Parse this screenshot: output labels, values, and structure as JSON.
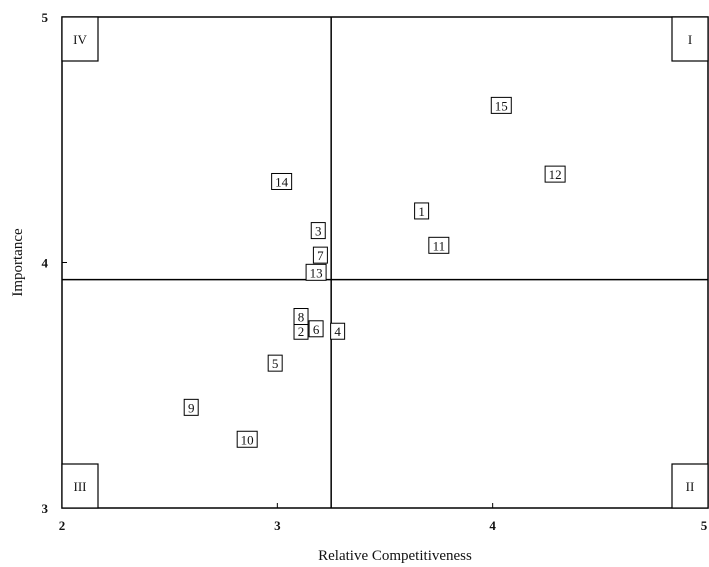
{
  "chart_data": {
    "type": "scatter",
    "title": "",
    "xlabel": "Relative Competitiveness",
    "ylabel": "Importance",
    "xlim": [
      2,
      5
    ],
    "ylim": [
      3,
      5
    ],
    "x_ticks": [
      "2",
      "3",
      "4",
      "5"
    ],
    "y_ticks": [
      "3",
      "4",
      "5"
    ],
    "divider": {
      "x": 3.25,
      "y": 3.93
    },
    "quadrants": [
      {
        "label": "I",
        "position": "top-right"
      },
      {
        "label": "II",
        "position": "bottom-right"
      },
      {
        "label": "III",
        "position": "bottom-left"
      },
      {
        "label": "IV",
        "position": "top-left"
      }
    ],
    "points": [
      {
        "label": "1",
        "x": 3.67,
        "y": 4.21
      },
      {
        "label": "2",
        "x": 3.11,
        "y": 3.72
      },
      {
        "label": "3",
        "x": 3.19,
        "y": 4.13
      },
      {
        "label": "4",
        "x": 3.28,
        "y": 3.72
      },
      {
        "label": "5",
        "x": 2.99,
        "y": 3.59
      },
      {
        "label": "6",
        "x": 3.18,
        "y": 3.73
      },
      {
        "label": "7",
        "x": 3.2,
        "y": 4.03
      },
      {
        "label": "8",
        "x": 3.11,
        "y": 3.78
      },
      {
        "label": "9",
        "x": 2.6,
        "y": 3.41
      },
      {
        "label": "10",
        "x": 2.86,
        "y": 3.28
      },
      {
        "label": "11",
        "x": 3.75,
        "y": 4.07
      },
      {
        "label": "12",
        "x": 4.29,
        "y": 4.36
      },
      {
        "label": "13",
        "x": 3.18,
        "y": 3.96
      },
      {
        "label": "14",
        "x": 3.02,
        "y": 4.33
      },
      {
        "label": "15",
        "x": 4.04,
        "y": 4.64
      }
    ],
    "grid": false,
    "legend": "none"
  }
}
